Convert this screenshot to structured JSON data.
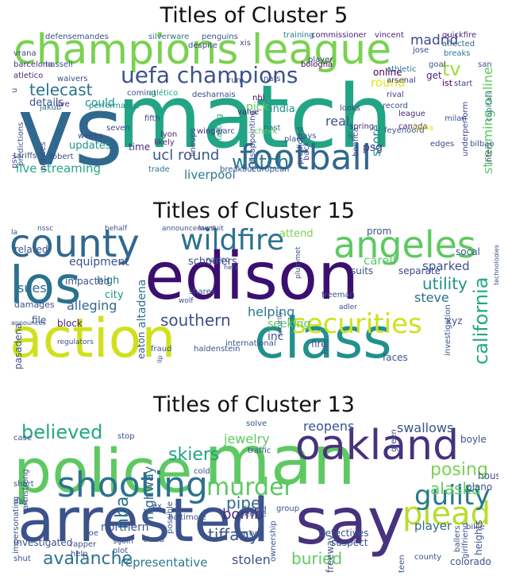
{
  "panels": [
    {
      "title": "Titles of Cluster 5"
    },
    {
      "title": "Titles of Cluster 15"
    },
    {
      "title": "Titles of Cluster 13"
    }
  ],
  "clouds": [
    {
      "words": [
        {
          "text": "match",
          "color": "#21a585"
        },
        {
          "text": "vs",
          "color": "#31688e"
        },
        {
          "text": "champions league",
          "color": "#7ad151"
        },
        {
          "text": "football",
          "color": "#31688e"
        },
        {
          "text": "uefa champions",
          "color": "#3b528b"
        },
        {
          "text": "watch",
          "color": "#2a788e"
        },
        {
          "text": "ucl round",
          "color": "#39568c"
        },
        {
          "text": "telecast",
          "color": "#2c728e"
        },
        {
          "text": "live streaming",
          "color": "#22a884"
        },
        {
          "text": "streaming online",
          "color": "#5ec962"
        },
        {
          "text": "madrid",
          "color": "#3e4989"
        },
        {
          "text": "tv",
          "color": "#9fda3a"
        },
        {
          "text": "liverpool",
          "color": "#2a788e"
        },
        {
          "text": "updates",
          "color": "#21918c"
        },
        {
          "text": "details",
          "color": "#3b528b"
        },
        {
          "text": "could",
          "color": "#21918c"
        },
        {
          "text": "round",
          "color": "#e3e418"
        },
        {
          "text": "psg",
          "color": "#443983"
        },
        {
          "text": "real",
          "color": "#3b528b"
        },
        {
          "text": "score",
          "color": "#238a8d"
        },
        {
          "text": "india",
          "color": "#21918c"
        },
        {
          "text": "pick",
          "color": "#5ec962"
        },
        {
          "text": "time",
          "color": "#472d7b"
        },
        {
          "text": "online",
          "color": "#440154"
        },
        {
          "text": "get",
          "color": "#482878"
        },
        {
          "text": "ist",
          "color": "#440154"
        },
        {
          "text": "capitals",
          "color": "#31688e"
        },
        {
          "text": "defensemandes",
          "color": "#3b528b"
        },
        {
          "text": "silverware",
          "color": "#2c728e"
        },
        {
          "text": "penguins",
          "color": "#39568c"
        },
        {
          "text": "training",
          "color": "#287c8e"
        },
        {
          "text": "commissioner",
          "color": "#482878"
        },
        {
          "text": "vincent",
          "color": "#482878"
        },
        {
          "text": "quickfire",
          "color": "#482878"
        },
        {
          "text": "affected",
          "color": "#31688e"
        },
        {
          "text": "vrana",
          "color": "#3e4989"
        },
        {
          "text": "hassell",
          "color": "#3b528b"
        },
        {
          "text": "waivers",
          "color": "#3b528b"
        },
        {
          "text": "barcelona",
          "color": "#472d7b"
        },
        {
          "text": "atletico",
          "color": "#482878"
        },
        {
          "text": "jakub",
          "color": "#2a788e"
        },
        {
          "text": "live",
          "color": "#472d7b"
        },
        {
          "text": "performance",
          "color": "#21918c"
        },
        {
          "text": "coming",
          "color": "#3b528b"
        },
        {
          "text": "atlético",
          "color": "#20a386"
        },
        {
          "text": "desharnais",
          "color": "#3e4989"
        },
        {
          "text": "nats",
          "color": "#3e4989"
        },
        {
          "text": "bologna",
          "color": "#440154"
        },
        {
          "text": "athletic",
          "color": "#2a788e"
        },
        {
          "text": "arsenal",
          "color": "#443983"
        },
        {
          "text": "rival",
          "color": "#443983"
        },
        {
          "text": "record",
          "color": "#3b528b"
        },
        {
          "text": "league",
          "color": "#482878"
        },
        {
          "text": "jose",
          "color": "#3e4989"
        },
        {
          "text": "goal",
          "color": "#3b528b"
        },
        {
          "text": "san",
          "color": "#3b528b"
        },
        {
          "text": "breaks",
          "color": "#287c8e"
        },
        {
          "text": "start",
          "color": "#443983"
        },
        {
          "text": "nhl",
          "color": "#440154"
        },
        {
          "text": "looks",
          "color": "#3e4989"
        },
        {
          "text": "past",
          "color": "#31688e"
        },
        {
          "text": "value",
          "color": "#482878"
        },
        {
          "text": "place",
          "color": "#3b528b"
        },
        {
          "text": "says",
          "color": "#3b528b"
        },
        {
          "text": "check",
          "color": "#5ec962"
        },
        {
          "text": "winger",
          "color": "#472d7b"
        },
        {
          "text": "parc",
          "color": "#3e4989"
        },
        {
          "text": "lyon",
          "color": "#482878"
        },
        {
          "text": "likely",
          "color": "#472d7b"
        },
        {
          "text": "weeks",
          "color": "#3e4989"
        },
        {
          "text": "seven",
          "color": "#3e4989"
        },
        {
          "text": "fifth",
          "color": "#3e4989"
        },
        {
          "text": "trade",
          "color": "#2c728e"
        },
        {
          "text": "breakout",
          "color": "#3b528b"
        },
        {
          "text": "european",
          "color": "#3b528b"
        },
        {
          "text": "iii",
          "color": "#3e4989"
        },
        {
          "text": "canada",
          "color": "#482878"
        },
        {
          "text": "feyenoord",
          "color": "#3b528b"
        },
        {
          "text": "bilbao",
          "color": "#3b528b"
        },
        {
          "text": "roma",
          "color": "#e3e418"
        },
        {
          "text": "milan",
          "color": "#3b528b"
        },
        {
          "text": "spring",
          "color": "#482878"
        },
        {
          "text": "edges",
          "color": "#3e4989"
        },
        {
          "text": "tariffs",
          "color": "#3b528b"
        },
        {
          "text": "robert",
          "color": "#3e4989"
        },
        {
          "text": "xis",
          "color": "#3e4989"
        },
        {
          "text": "player",
          "color": "#3e4989"
        },
        {
          "text": "run",
          "color": "#3e4989"
        },
        {
          "text": "despite",
          "color": "#3e4989"
        },
        {
          "text": "u",
          "color": "#3e4989"
        },
        {
          "text": "psv",
          "color": "#3e4989"
        },
        {
          "text": "predictions",
          "color": "#3b528b"
        },
        {
          "text": "princes",
          "color": "#3e4989"
        },
        {
          "text": "starting",
          "color": "#20a386"
        },
        {
          "text": "lineups",
          "color": "#3e4989"
        },
        {
          "text": "disappointing",
          "color": "#3e4989"
        },
        {
          "text": "benfica",
          "color": "#3e4989"
        },
        {
          "text": "predicted",
          "color": "#3e4989"
        },
        {
          "text": "back",
          "color": "#3e4989"
        },
        {
          "text": "inter",
          "color": "#3e4989"
        },
        {
          "text": "underperform",
          "color": "#3e4989"
        },
        {
          "text": "fast",
          "color": "#3e4989"
        }
      ]
    },
    {
      "words": [
        {
          "text": "edison",
          "color": "#3b0f70"
        },
        {
          "text": "los",
          "color": "#2c728e"
        },
        {
          "text": "angeles",
          "color": "#5ec962"
        },
        {
          "text": "action",
          "color": "#d0e11c"
        },
        {
          "text": "class",
          "color": "#21918c"
        },
        {
          "text": "county",
          "color": "#31688e"
        },
        {
          "text": "wildfire",
          "color": "#2c728e"
        },
        {
          "text": "securities",
          "color": "#d0e11c"
        },
        {
          "text": "california",
          "color": "#22a884"
        },
        {
          "text": "southern",
          "color": "#3b528b"
        },
        {
          "text": "utility",
          "color": "#21918c"
        },
        {
          "text": "sues",
          "color": "#31688e"
        },
        {
          "text": "alleging",
          "color": "#31688e"
        },
        {
          "text": "equipment",
          "color": "#3b528b"
        },
        {
          "text": "sparked",
          "color": "#3b528b"
        },
        {
          "text": "steve",
          "color": "#2c728e"
        },
        {
          "text": "helping",
          "color": "#2a788e"
        },
        {
          "text": "carell",
          "color": "#5ec962"
        },
        {
          "text": "altadena",
          "color": "#2c728e"
        },
        {
          "text": "high",
          "color": "#2a788e"
        },
        {
          "text": "city",
          "color": "#21918c"
        },
        {
          "text": "separate",
          "color": "#3e4989"
        },
        {
          "text": "inc",
          "color": "#3b528b"
        },
        {
          "text": "seeking",
          "color": "#5ec962"
        },
        {
          "text": "attend",
          "color": "#7ad151"
        },
        {
          "text": "schoolers",
          "color": "#3e4989"
        },
        {
          "text": "impacted",
          "color": "#3b528b"
        },
        {
          "text": "prom",
          "color": "#3b528b"
        },
        {
          "text": "socal",
          "color": "#3b528b"
        },
        {
          "text": "suits",
          "color": "#3b528b"
        },
        {
          "text": "file",
          "color": "#3b528b"
        },
        {
          "text": "block",
          "color": "#482878"
        },
        {
          "text": "faces",
          "color": "#3b528b"
        },
        {
          "text": "fire",
          "color": "#3b528b"
        },
        {
          "text": "xyz",
          "color": "#3b528b"
        },
        {
          "text": "eaton",
          "color": "#3b528b"
        },
        {
          "text": "pasadena",
          "color": "#3b528b"
        },
        {
          "text": "damages",
          "color": "#3b528b"
        },
        {
          "text": "related",
          "color": "#3b528b"
        },
        {
          "text": "la",
          "color": "#3b528b"
        },
        {
          "text": "nssc",
          "color": "#3b528b"
        },
        {
          "text": "behalf",
          "color": "#3b528b"
        },
        {
          "text": "announcement",
          "color": "#3b528b"
        },
        {
          "text": "lawsuit",
          "color": "#3b528b"
        },
        {
          "text": "announces",
          "color": "#3b528b"
        },
        {
          "text": "regulators",
          "color": "#3b528b"
        },
        {
          "text": "fraud",
          "color": "#3b528b"
        },
        {
          "text": "haldenstein",
          "color": "#3b528b"
        },
        {
          "text": "international",
          "color": "#3b528b"
        },
        {
          "text": "llp",
          "color": "#3b528b"
        },
        {
          "text": "security",
          "color": "#3b528b"
        },
        {
          "text": "filed",
          "color": "#3b528b"
        },
        {
          "text": "investigation",
          "color": "#3b528b"
        },
        {
          "text": "shares",
          "color": "#3b528b"
        },
        {
          "text": "wolf",
          "color": "#3b528b"
        },
        {
          "text": "freeman",
          "color": "#3b528b"
        },
        {
          "text": "adler",
          "color": "#3b528b"
        },
        {
          "text": "napco",
          "color": "#3b528b"
        },
        {
          "text": "herz",
          "color": "#3b528b"
        },
        {
          "text": "plummet",
          "color": "#3b528b"
        },
        {
          "text": "technologies",
          "color": "#3b528b"
        }
      ]
    },
    {
      "words": [
        {
          "text": "police",
          "color": "#5ec962"
        },
        {
          "text": "man",
          "color": "#5ec962"
        },
        {
          "text": "arrested",
          "color": "#3b528b"
        },
        {
          "text": "say",
          "color": "#46327e"
        },
        {
          "text": "oakland",
          "color": "#46327e"
        },
        {
          "text": "shooting",
          "color": "#2c728e"
        },
        {
          "text": "plead",
          "color": "#b5de2b"
        },
        {
          "text": "guilty",
          "color": "#2a788e"
        },
        {
          "text": "murder",
          "color": "#5ec962"
        },
        {
          "text": "skiers",
          "color": "#20a386"
        },
        {
          "text": "believed",
          "color": "#22a884"
        },
        {
          "text": "avalanche",
          "color": "#2c728e"
        },
        {
          "text": "posing",
          "color": "#7ad151"
        },
        {
          "text": "alaska",
          "color": "#5ec962"
        },
        {
          "text": "buried",
          "color": "#5ec962"
        },
        {
          "text": "tiffany",
          "color": "#3b528b"
        },
        {
          "text": "nba",
          "color": "#2c728e"
        },
        {
          "text": "pipe",
          "color": "#31688e"
        },
        {
          "text": "bomb",
          "color": "#472d7b"
        },
        {
          "text": "highway",
          "color": "#31688e"
        },
        {
          "text": "jewelry",
          "color": "#5ec962"
        },
        {
          "text": "reopens",
          "color": "#3b528b"
        },
        {
          "text": "swallows",
          "color": "#3b528b"
        },
        {
          "text": "player",
          "color": "#31688e"
        },
        {
          "text": "representative",
          "color": "#2a788e"
        },
        {
          "text": "stolen",
          "color": "#3b528b"
        },
        {
          "text": "northern",
          "color": "#3b528b"
        },
        {
          "text": "investigated",
          "color": "#3b528b"
        },
        {
          "text": "colorado",
          "color": "#3b528b"
        },
        {
          "text": "suspect",
          "color": "#3b528b"
        },
        {
          "text": "detectives",
          "color": "#3b528b"
        },
        {
          "text": "freeway",
          "color": "#3b528b"
        },
        {
          "text": "heights",
          "color": "#3b528b"
        },
        {
          "text": "plano",
          "color": "#3b528b"
        },
        {
          "text": "house",
          "color": "#3b528b"
        },
        {
          "text": "boyle",
          "color": "#3b528b"
        },
        {
          "text": "green",
          "color": "#3b528b"
        },
        {
          "text": "case",
          "color": "#3b528b"
        },
        {
          "text": "stop",
          "color": "#3b528b"
        },
        {
          "text": "traffic",
          "color": "#3b528b"
        },
        {
          "text": "solve",
          "color": "#3b528b"
        },
        {
          "text": "cold",
          "color": "#3b528b"
        },
        {
          "text": "people",
          "color": "#3b528b"
        },
        {
          "text": "found",
          "color": "#3b528b"
        },
        {
          "text": "group",
          "color": "#3b528b"
        },
        {
          "text": "baltimore",
          "color": "#3b528b"
        },
        {
          "text": "ex",
          "color": "#3b528b"
        },
        {
          "text": "party",
          "color": "#3b528b"
        },
        {
          "text": "possible",
          "color": "#3b528b"
        },
        {
          "text": "short",
          "color": "#3b528b"
        },
        {
          "text": "day",
          "color": "#3b528b"
        },
        {
          "text": "armstrong",
          "color": "#3b528b"
        },
        {
          "text": "impersonating",
          "color": "#3b528b"
        },
        {
          "text": "rapper",
          "color": "#3b528b"
        },
        {
          "text": "joe",
          "color": "#3b528b"
        },
        {
          "text": "help",
          "color": "#3b528b"
        },
        {
          "text": "st",
          "color": "#3b528b"
        },
        {
          "text": "plot",
          "color": "#3b528b"
        },
        {
          "text": "join",
          "color": "#3b528b"
        },
        {
          "text": "cloud",
          "color": "#3b528b"
        },
        {
          "text": "shut",
          "color": "#3b528b"
        },
        {
          "text": "ownership",
          "color": "#3b528b"
        },
        {
          "text": "teen",
          "color": "#3b528b"
        },
        {
          "text": "billie",
          "color": "#3b528b"
        },
        {
          "text": "ballers",
          "color": "#3b528b"
        },
        {
          "text": "girlfriend",
          "color": "#3b528b"
        },
        {
          "text": "county",
          "color": "#3b528b"
        }
      ]
    }
  ]
}
